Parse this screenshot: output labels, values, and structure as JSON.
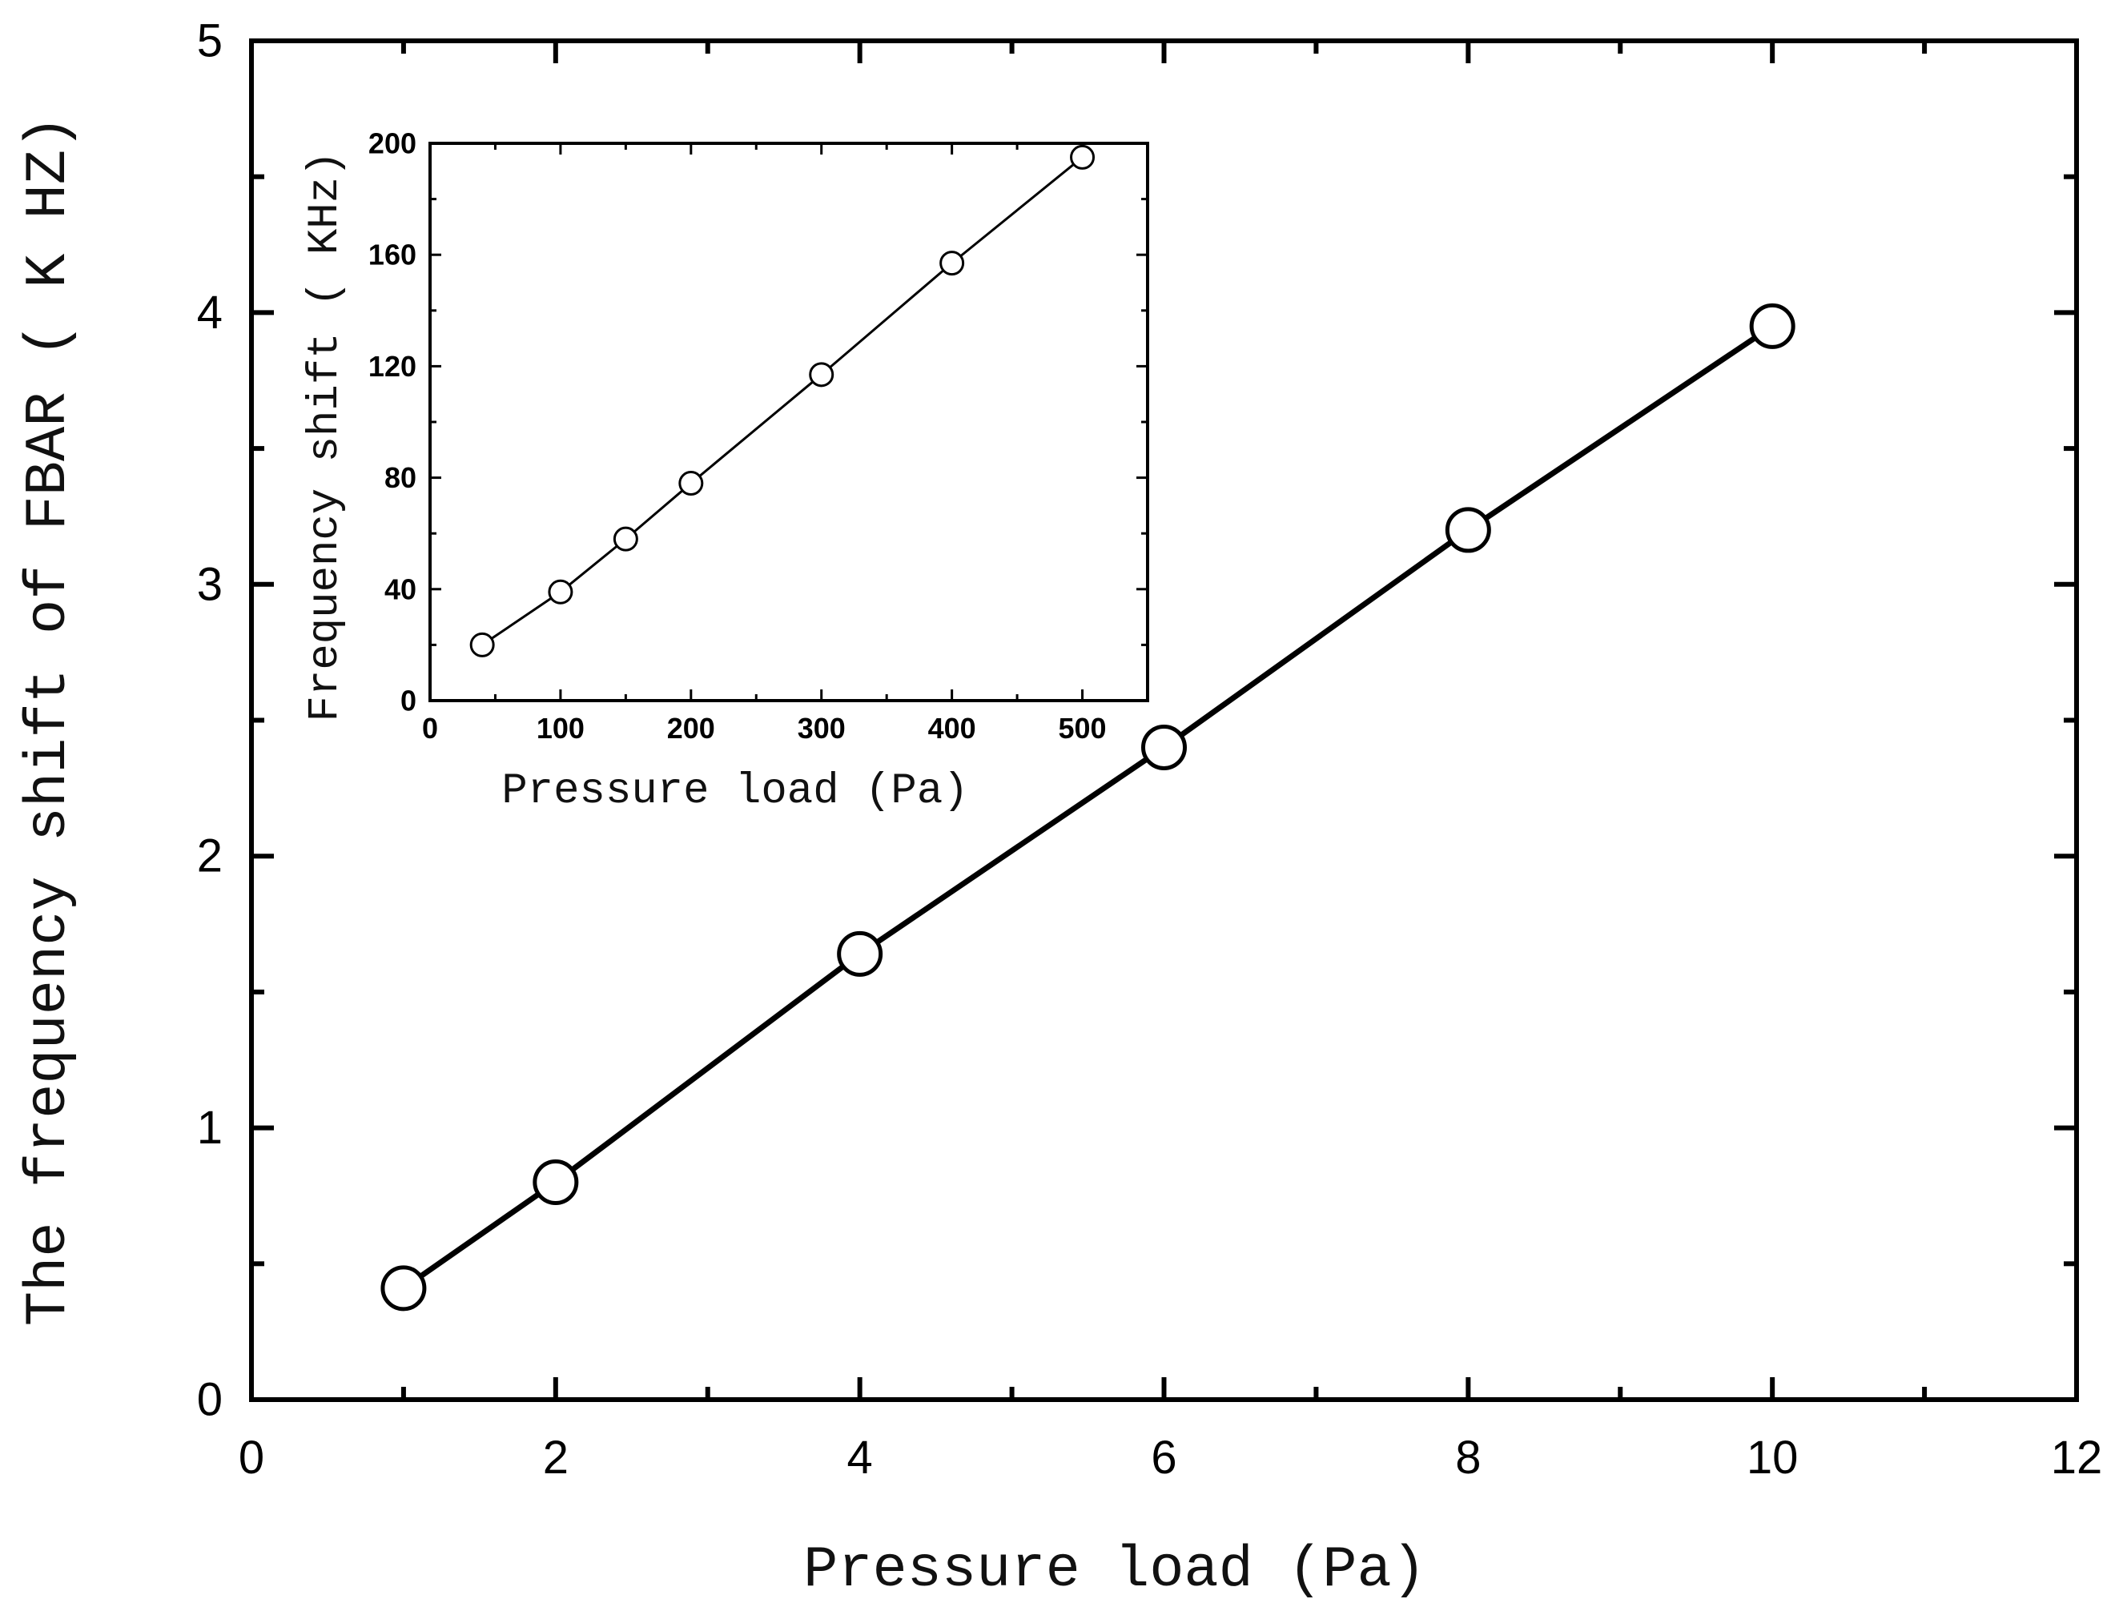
{
  "chart_data": [
    {
      "id": "main",
      "type": "line",
      "title": "",
      "xlabel": "Pressure load (Pa)",
      "ylabel": "The frequency shift of FBAR ( K HZ)",
      "xlim": [
        0,
        12
      ],
      "ylim": [
        0,
        5
      ],
      "xticks": [
        0,
        2,
        4,
        6,
        8,
        10,
        12
      ],
      "xtick_labels": [
        "0",
        "2",
        "4",
        "6",
        "8",
        "10",
        "12"
      ],
      "yticks": [
        0,
        1,
        2,
        3,
        4,
        5
      ],
      "ytick_labels": [
        "0",
        "1",
        "2",
        "3",
        "4",
        "5"
      ],
      "grid": false,
      "series": [
        {
          "name": "main-series",
          "marker": "open-circle",
          "x": [
            1,
            2,
            4,
            6,
            8,
            10
          ],
          "y": [
            0.41,
            0.8,
            1.64,
            2.4,
            3.2,
            3.95
          ]
        }
      ]
    },
    {
      "id": "inset",
      "type": "line",
      "title": "",
      "xlabel": "Pressure load (Pa)",
      "ylabel": "Frequency shift ( KHz)",
      "xlim": [
        0,
        550
      ],
      "ylim": [
        0,
        200
      ],
      "xticks": [
        0,
        100,
        200,
        300,
        400,
        500
      ],
      "xtick_labels": [
        "0",
        "100",
        "200",
        "300",
        "400",
        "500"
      ],
      "yticks": [
        0,
        40,
        80,
        120,
        160,
        200
      ],
      "ytick_labels": [
        "0",
        "40",
        "80",
        "120",
        "160",
        "200"
      ],
      "grid": false,
      "series": [
        {
          "name": "inset-series",
          "marker": "open-circle",
          "x": [
            40,
            100,
            150,
            200,
            300,
            400,
            500
          ],
          "y": [
            20,
            39,
            58,
            78,
            117,
            157,
            195
          ]
        }
      ]
    }
  ]
}
